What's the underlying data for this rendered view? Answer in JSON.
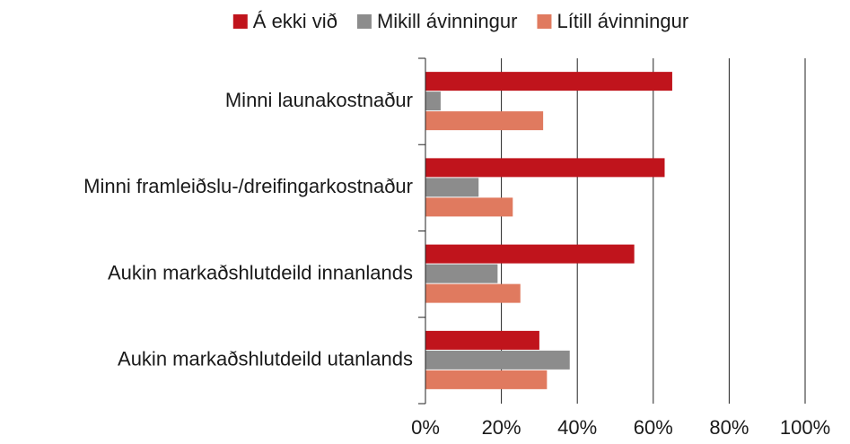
{
  "chart_data": {
    "type": "hbar",
    "categories": [
      "Minni launakostnaður",
      "Minni framleiðslu-/dreifingarkostnaður",
      "Aukin markaðshlutdeild innanlands",
      "Aukin markaðshlutdeild utanlands"
    ],
    "series": [
      {
        "name": "Á ekki við",
        "color": "#c0141c",
        "values": [
          65,
          63,
          55,
          30
        ]
      },
      {
        "name": "Mikill ávinningur",
        "color": "#8c8c8c",
        "values": [
          4,
          14,
          19,
          38
        ]
      },
      {
        "name": "Lítill ávinningur",
        "color": "#e07a5f",
        "values": [
          31,
          23,
          25,
          32
        ]
      }
    ],
    "xlim": [
      0,
      100
    ],
    "xticks": [
      {
        "value": 0,
        "label": "0%"
      },
      {
        "value": 20,
        "label": "20%"
      },
      {
        "value": 40,
        "label": "40%"
      },
      {
        "value": 60,
        "label": "60%"
      },
      {
        "value": 80,
        "label": "80%"
      },
      {
        "value": 100,
        "label": "100%"
      }
    ],
    "grid": true,
    "legend": "top"
  }
}
